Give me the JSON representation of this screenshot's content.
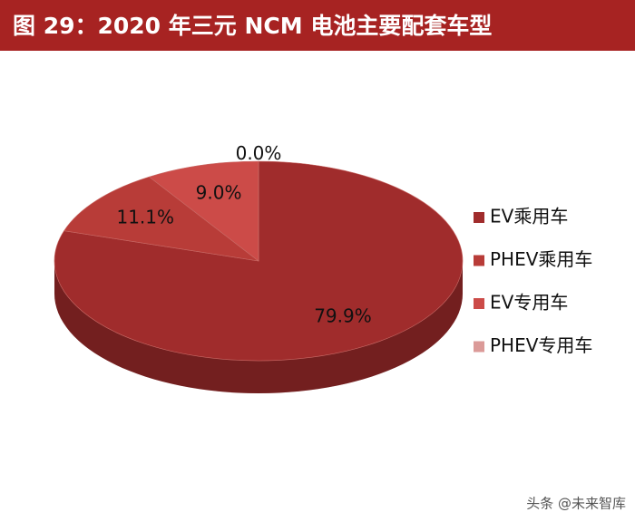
{
  "chart_data": {
    "type": "pie",
    "title": "图 29：2020 年三元 NCM 电池主要配套车型",
    "categories": [
      "EV乘用车",
      "PHEV乘用车",
      "EV专用车",
      "PHEV专用车"
    ],
    "values": [
      79.9,
      11.1,
      9.0,
      0.0
    ],
    "value_labels": [
      "79.9%",
      "11.1%",
      "9.0%",
      "0.0%"
    ],
    "colors": [
      "#a02c2c",
      "#b83c38",
      "#cc4b48",
      "#db9a98"
    ],
    "legend": "right",
    "watermark": "头条 @未来智库"
  }
}
